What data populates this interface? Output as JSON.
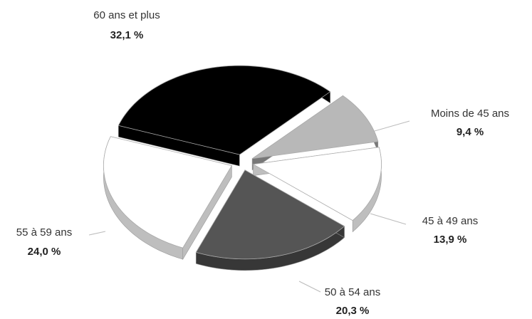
{
  "chart_data": {
    "type": "pie",
    "categories": [
      "Moins de 45 ans",
      "45 à 49 ans",
      "50 à 54 ans",
      "55 à 59 ans",
      "60 ans et plus"
    ],
    "values": [
      9.4,
      13.9,
      20.3,
      24.0,
      32.1
    ],
    "value_labels": [
      "9,4 %",
      "13,9 %",
      "20,3 %",
      "24,0 %",
      "32,1 %"
    ],
    "colors": [
      "#b8b8b8",
      "#ffffff",
      "#555555",
      "#ffffff",
      "#000000"
    ]
  }
}
